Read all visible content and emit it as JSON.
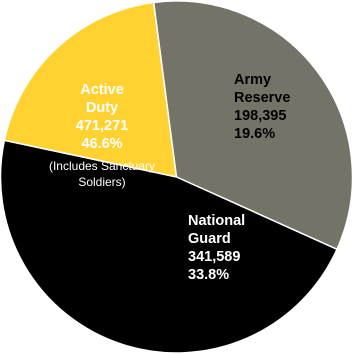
{
  "chart_data": {
    "type": "pie",
    "slices": [
      {
        "key": "active",
        "name": [
          "Active",
          "Duty"
        ],
        "count": "471,271",
        "percent_label": "46.6%",
        "value": 46.6,
        "note": [
          "(Includes Sanctuary",
          "Soldiers)"
        ],
        "color": "#000000",
        "text_color": "#ffffff"
      },
      {
        "key": "reserve",
        "name": [
          "Army",
          "Reserve"
        ],
        "count": "198,395",
        "percent_label": "19.6%",
        "value": 19.6,
        "color": "#ffd232",
        "text_color": "#000000"
      },
      {
        "key": "guard",
        "name": [
          "National",
          "Guard"
        ],
        "count": "341,589",
        "percent_label": "33.8%",
        "value": 33.8,
        "color": "#737467",
        "text_color": "#ffffff"
      }
    ]
  }
}
